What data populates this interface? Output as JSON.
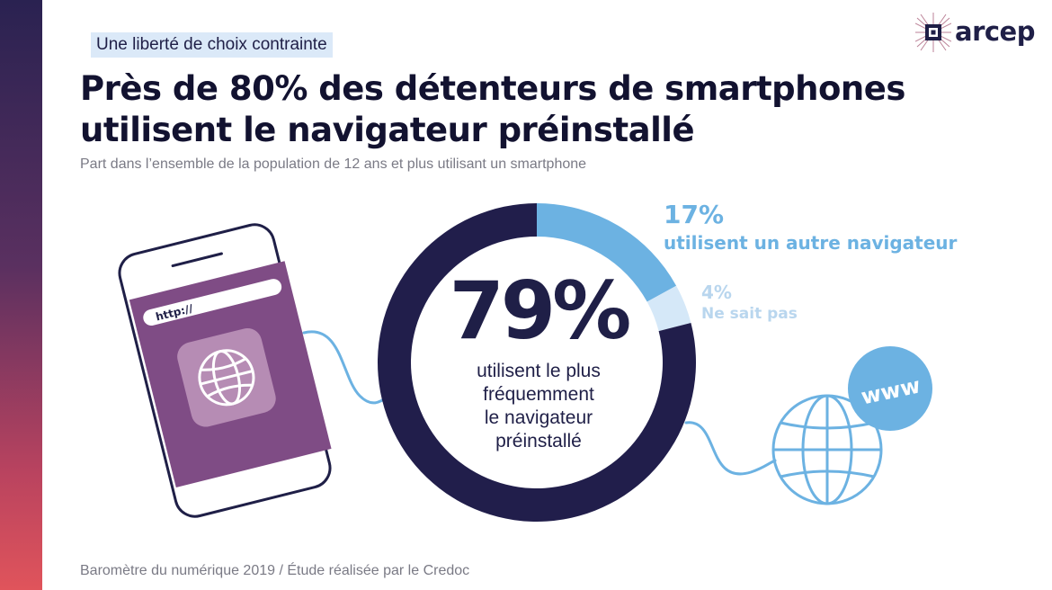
{
  "header": {
    "kicker": "Une liberté de choix contrainte",
    "title_line1": "Près de 80% des détenteurs de smartphones",
    "title_line2": "utilisent le navigateur préinstallé",
    "subtitle": "Part dans l’ensemble de la population de 12 ans et plus utilisant un smartphone"
  },
  "logo": {
    "text": "arcep"
  },
  "footer": {
    "source": "Baromètre du numérique 2019 / Étude réalisée par le Credoc"
  },
  "illustration": {
    "url_text": "http://",
    "www_text": "www"
  },
  "colors": {
    "preinstalled": "#211e4b",
    "other": "#6cb2e2",
    "unknown": "#d5e8f8",
    "accent_bar": "#5a3060"
  },
  "chart_data": {
    "type": "pie",
    "unit": "%",
    "slices": [
      {
        "pct_label": "79%",
        "value": 79,
        "label_lines": [
          "utilisent le plus",
          "fréquemment",
          "le navigateur",
          "préinstallé"
        ],
        "color": "#211e4b"
      },
      {
        "pct_label": "17%",
        "value": 17,
        "label": "utilisent un autre navigateur",
        "color": "#6cb2e2"
      },
      {
        "pct_label": "4%",
        "value": 4,
        "label": "Ne sait pas",
        "color": "#d5e8f8"
      }
    ]
  }
}
